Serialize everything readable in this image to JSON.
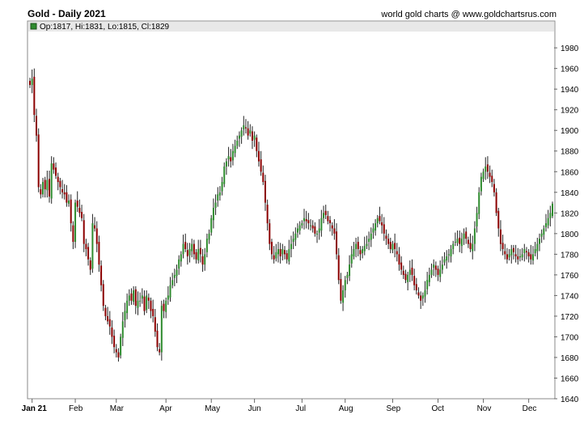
{
  "header": {
    "title": "Gold - Daily 2021",
    "source": "world gold charts @ www.goldchartsrus.com",
    "ohlc_readout": "Op:1817, Hi:1831, Lo:1815, Cl:1829"
  },
  "colors": {
    "up": "#2e8b2e",
    "down": "#8b0000",
    "wick": "#222222",
    "header_bar": "#e8e8e8",
    "frame": "#888888"
  },
  "chart_data": {
    "type": "candlestick",
    "title": "Gold - Daily 2021",
    "x_tick_labels": [
      "Jan 21",
      "Feb",
      "Mar",
      "Apr",
      "May",
      "Jun",
      "Jul",
      "Aug",
      "Sep",
      "Oct",
      "Nov",
      "Dec"
    ],
    "x_tick_positions": [
      1,
      21,
      40,
      63,
      84,
      104,
      126,
      146,
      168,
      189,
      210,
      231
    ],
    "y_ticks": [
      1640,
      1660,
      1680,
      1700,
      1720,
      1740,
      1760,
      1780,
      1800,
      1820,
      1840,
      1860,
      1880,
      1900,
      1920,
      1940,
      1960,
      1980
    ],
    "ylim": [
      1640,
      1995
    ],
    "y_axis_side": "right",
    "grid": false,
    "last_bar": {
      "open": 1817,
      "high": 1831,
      "low": 1815,
      "close": 1829
    },
    "closes": [
      1944,
      1950,
      1915,
      1895,
      1845,
      1838,
      1850,
      1843,
      1852,
      1836,
      1868,
      1862,
      1856,
      1850,
      1845,
      1840,
      1838,
      1830,
      1832,
      1810,
      1792,
      1830,
      1826,
      1820,
      1815,
      1790,
      1785,
      1775,
      1765,
      1810,
      1805,
      1790,
      1770,
      1750,
      1730,
      1720,
      1715,
      1710,
      1700,
      1690,
      1685,
      1680,
      1700,
      1715,
      1725,
      1735,
      1740,
      1735,
      1745,
      1730,
      1735,
      1735,
      1740,
      1725,
      1740,
      1735,
      1725,
      1720,
      1705,
      1690,
      1685,
      1730,
      1725,
      1735,
      1740,
      1750,
      1755,
      1760,
      1765,
      1775,
      1780,
      1790,
      1785,
      1778,
      1785,
      1790,
      1780,
      1775,
      1785,
      1780,
      1770,
      1780,
      1795,
      1800,
      1815,
      1825,
      1830,
      1838,
      1840,
      1850,
      1865,
      1870,
      1875,
      1870,
      1880,
      1885,
      1890,
      1895,
      1900,
      1905,
      1902,
      1895,
      1900,
      1890,
      1895,
      1880,
      1870,
      1860,
      1850,
      1830,
      1810,
      1790,
      1780,
      1775,
      1782,
      1785,
      1778,
      1785,
      1780,
      1775,
      1785,
      1790,
      1795,
      1800,
      1805,
      1808,
      1810,
      1815,
      1812,
      1810,
      1808,
      1805,
      1800,
      1800,
      1805,
      1815,
      1820,
      1818,
      1812,
      1810,
      1805,
      1800,
      1780,
      1755,
      1735,
      1745,
      1755,
      1760,
      1770,
      1780,
      1785,
      1790,
      1785,
      1780,
      1785,
      1788,
      1790,
      1795,
      1800,
      1805,
      1810,
      1815,
      1812,
      1808,
      1800,
      1795,
      1790,
      1785,
      1790,
      1785,
      1780,
      1770,
      1765,
      1760,
      1755,
      1760,
      1765,
      1760,
      1750,
      1745,
      1740,
      1735,
      1740,
      1745,
      1755,
      1760,
      1765,
      1770,
      1765,
      1760,
      1765,
      1770,
      1775,
      1778,
      1780,
      1785,
      1790,
      1792,
      1795,
      1790,
      1795,
      1800,
      1795,
      1790,
      1785,
      1790,
      1805,
      1820,
      1840,
      1855,
      1860,
      1865,
      1860,
      1855,
      1850,
      1840,
      1820,
      1805,
      1790,
      1785,
      1780,
      1775,
      1780,
      1785,
      1782,
      1778,
      1775,
      1778,
      1780,
      1785,
      1782,
      1778,
      1775,
      1780,
      1785,
      1790,
      1795,
      1800,
      1805,
      1810,
      1815,
      1820,
      1829
    ]
  }
}
